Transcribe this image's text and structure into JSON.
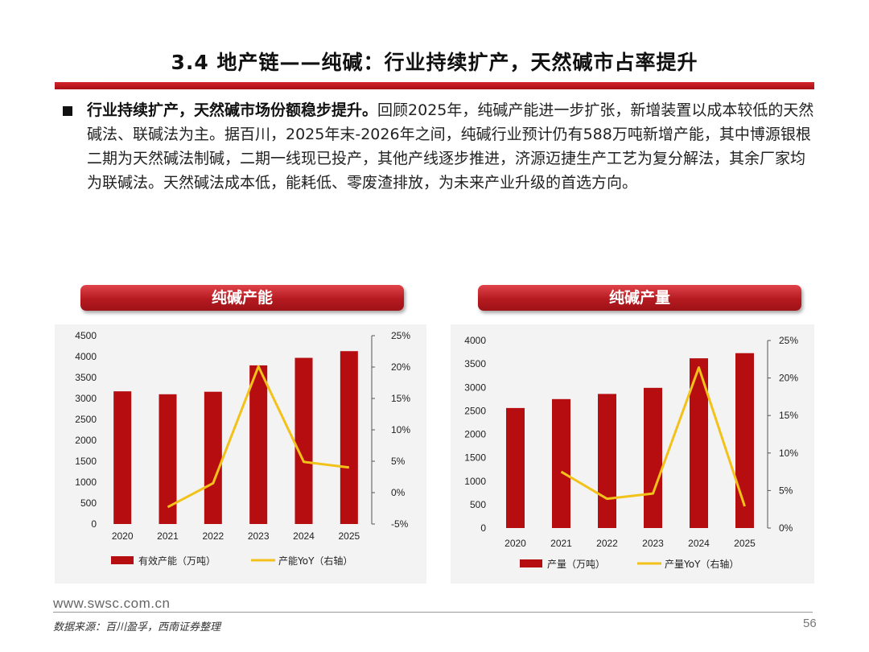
{
  "header": {
    "title": "3.4 地产链——纯碱：行业持续扩产，天然碱市占率提升"
  },
  "body": {
    "lead": "行业持续扩产，天然碱市场份额稳步提升。",
    "text": "回顾2025年，纯碱产能进一步扩张，新增装置以成本较低的天然碱法、联碱法为主。据百川，2025年末-2026年之间，纯碱行业预计仍有588万吨新增产能，其中博源银根二期为天然碱法制碱，二期一线现已投产，其他产线逐步推进，济源迈捷生产工艺为复分解法，其余厂家均为联碱法。天然碱法成本低，能耗低、零废渣排放，为未来产业升级的首选方向。"
  },
  "footer": {
    "url": "www.swsc.com.cn",
    "source": "数据来源：百川盈孚，西南证券整理",
    "page": "56"
  },
  "colors": {
    "bar": "#b50d10",
    "line": "#f2c21a",
    "accent": "#c8161d"
  },
  "chart_data": [
    {
      "type": "bar",
      "title": "纯碱产能",
      "categories": [
        "2020",
        "2021",
        "2022",
        "2023",
        "2024",
        "2025"
      ],
      "y_left": {
        "ylim": [
          0,
          4500
        ],
        "ticks": [
          "0",
          "500",
          "1000",
          "1500",
          "2000",
          "2500",
          "3000",
          "3500",
          "4000",
          "4500"
        ]
      },
      "y_right": {
        "ylim": [
          -5,
          25
        ],
        "ticks": [
          "-5%",
          "0%",
          "5%",
          "10%",
          "15%",
          "20%",
          "25%"
        ]
      },
      "series": [
        {
          "name": "有效产能（万吨）",
          "type": "bar",
          "axis": "left",
          "values": [
            3170,
            3100,
            3160,
            3790,
            3970,
            4130
          ]
        },
        {
          "name": "产能YoY（右轴）",
          "type": "line",
          "axis": "right",
          "values": [
            null,
            -2.3,
            1.5,
            20.1,
            4.9,
            4.0
          ]
        }
      ]
    },
    {
      "type": "bar",
      "title": "纯碱产量",
      "categories": [
        "2020",
        "2021",
        "2022",
        "2023",
        "2024",
        "2025"
      ],
      "y_left": {
        "ylim": [
          0,
          4000
        ],
        "ticks": [
          "0",
          "500",
          "1000",
          "1500",
          "2000",
          "2500",
          "3000",
          "3500",
          "4000"
        ]
      },
      "y_right": {
        "ylim": [
          0,
          25
        ],
        "ticks": [
          "0%",
          "5%",
          "10%",
          "15%",
          "20%",
          "25%"
        ]
      },
      "series": [
        {
          "name": "产量（万吨）",
          "type": "bar",
          "axis": "left",
          "values": [
            2560,
            2750,
            2860,
            2990,
            3620,
            3730
          ]
        },
        {
          "name": "产量YoY（右轴）",
          "type": "line",
          "axis": "right",
          "values": [
            null,
            7.5,
            3.9,
            4.6,
            21.4,
            2.9
          ]
        }
      ]
    }
  ]
}
